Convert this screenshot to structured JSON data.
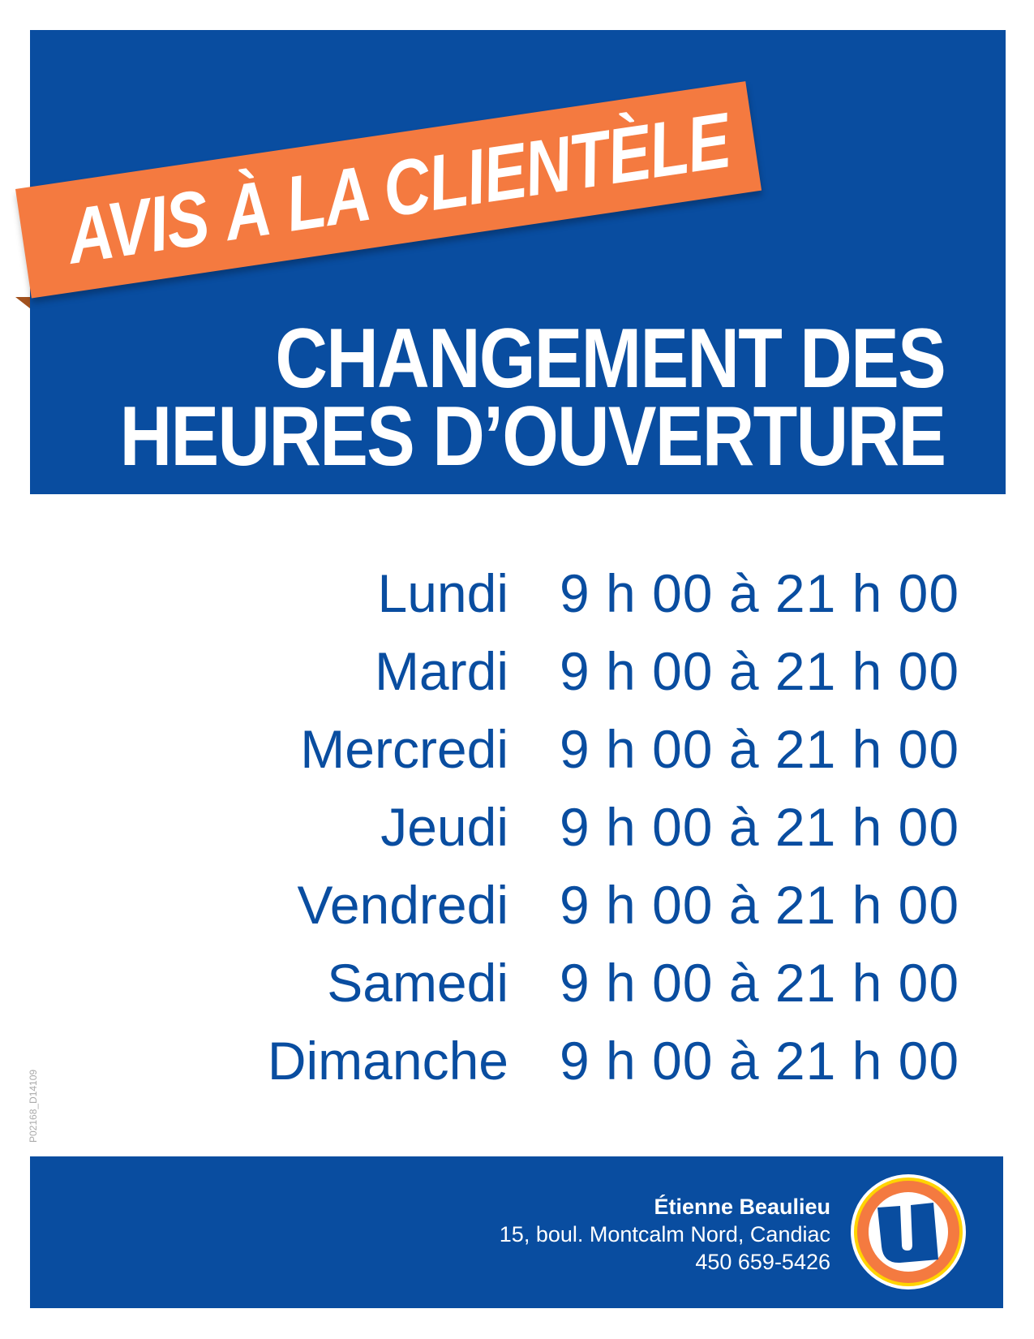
{
  "header": {
    "banner": "AVIS À LA CLIENTÈLE",
    "title_line1": "CHANGEMENT DES",
    "title_line2": "HEURES D’OUVERTURE"
  },
  "schedule": [
    {
      "day": "Lundi",
      "hours": "9 h 00 à 21 h 00"
    },
    {
      "day": "Mardi",
      "hours": "9 h 00 à 21 h 00"
    },
    {
      "day": "Mercredi",
      "hours": "9 h 00 à 21 h 00"
    },
    {
      "day": "Jeudi",
      "hours": "9 h 00 à 21 h 00"
    },
    {
      "day": "Vendredi",
      "hours": "9 h 00 à 21 h 00"
    },
    {
      "day": "Samedi",
      "hours": "9 h 00 à 21 h 00"
    },
    {
      "day": "Dimanche",
      "hours": "9 h 00 à 21 h 00"
    }
  ],
  "document_code": "P02168_D14109",
  "footer": {
    "owner": "Étienne Beaulieu",
    "address": "15, boul. Montcalm Nord, Candiac",
    "phone": "450 659-5426",
    "logo": "uniprix-u-logo"
  },
  "colors": {
    "blue": "#094da0",
    "orange": "#f47a40",
    "yellow": "#ffd400"
  }
}
